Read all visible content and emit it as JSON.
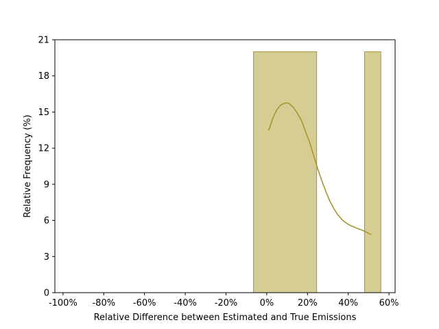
{
  "chart_data": {
    "type": "bar",
    "xlabel": "Relative Difference between Estimated and True Emissions",
    "ylabel": "Relative Frequency (%)",
    "xlim": [
      -104,
      63
    ],
    "ylim": [
      0,
      21
    ],
    "x_ticks": [
      -100,
      -80,
      -60,
      -40,
      -20,
      0,
      20,
      40,
      60
    ],
    "x_tick_labels": [
      "-100%",
      "-80%",
      "-60%",
      "-40%",
      "-20%",
      "0%",
      "20%",
      "40%",
      "60%"
    ],
    "y_ticks": [
      0,
      3,
      6,
      9,
      12,
      15,
      18,
      21
    ],
    "y_tick_labels": [
      "0",
      "3",
      "6",
      "9",
      "12",
      "15",
      "18",
      "21"
    ],
    "bins": [
      {
        "x0": -6.5,
        "x1": 24.5,
        "value": 20
      },
      {
        "x0": 48,
        "x1": 56,
        "value": 20
      }
    ],
    "kde": {
      "x": [
        1,
        3,
        5,
        7,
        9,
        10,
        11,
        13,
        15,
        17,
        19,
        21,
        23,
        25,
        27,
        29,
        31,
        33,
        35,
        37,
        39,
        41,
        43,
        45,
        47,
        49,
        51
      ],
      "y": [
        13.5,
        14.5,
        15.2,
        15.6,
        15.75,
        15.75,
        15.7,
        15.4,
        14.9,
        14.3,
        13.4,
        12.5,
        11.4,
        10.3,
        9.3,
        8.4,
        7.6,
        6.95,
        6.45,
        6.05,
        5.78,
        5.58,
        5.44,
        5.3,
        5.18,
        5.02,
        4.85
      ]
    },
    "colors": {
      "bar_fill": "#d6cd95",
      "bar_edge": "#a5962e",
      "line": "#a5962e"
    },
    "grid": false,
    "legend": "none"
  }
}
